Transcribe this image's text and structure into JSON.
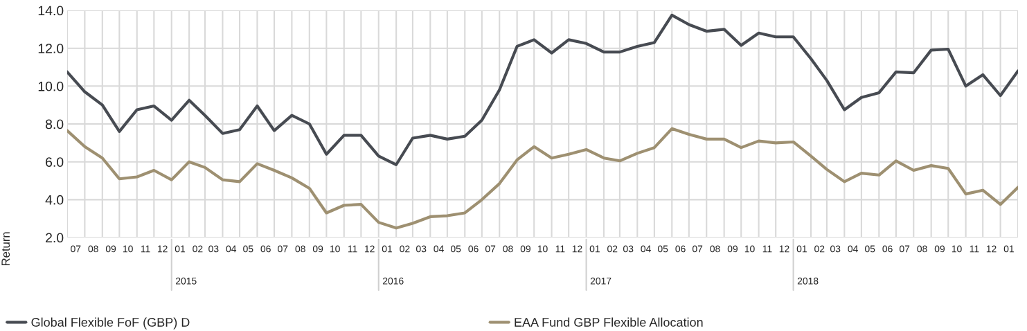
{
  "chart_data": {
    "type": "line",
    "ylabel": "Return",
    "x": [
      "2014-07-01",
      "2014-08-01",
      "2014-09-01",
      "2014-10-01",
      "2014-11-01",
      "2014-12-01",
      "2015-01-01",
      "2015-02-01",
      "2015-03-01",
      "2015-04-01",
      "2015-05-01",
      "2015-06-01",
      "2015-07-01",
      "2015-08-01",
      "2015-09-01",
      "2015-10-01",
      "2015-11-01",
      "2015-12-01",
      "2016-01-01",
      "2016-02-01",
      "2016-03-01",
      "2016-04-01",
      "2016-05-01",
      "2016-06-01",
      "2016-07-01",
      "2016-08-01",
      "2016-09-01",
      "2016-10-01",
      "2016-11-01",
      "2016-12-01",
      "2017-01-01",
      "2017-02-01",
      "2017-03-01",
      "2017-04-01",
      "2017-05-01",
      "2017-06-01",
      "2017-07-01",
      "2017-08-01",
      "2017-09-01",
      "2017-10-01",
      "2017-11-01",
      "2017-12-01",
      "2018-01-01",
      "2018-02-01",
      "2018-03-01",
      "2018-04-01",
      "2018-05-01",
      "2018-06-01",
      "2018-07-01",
      "2018-08-01",
      "2018-09-01",
      "2018-10-01",
      "2018-11-01",
      "2018-12-01",
      "2019-01-01",
      "2019-02-01"
    ],
    "series": [
      {
        "name": "Global Flexible FoF (GBP) D",
        "color": "#474b52",
        "values": [
          10.75,
          9.7,
          9.0,
          7.6,
          8.75,
          8.95,
          8.2,
          9.25,
          8.45,
          7.5,
          7.7,
          8.95,
          7.65,
          8.45,
          8.0,
          6.4,
          7.4,
          7.4,
          6.3,
          5.85,
          7.25,
          7.4,
          7.2,
          7.35,
          8.2,
          9.8,
          12.1,
          12.45,
          11.75,
          12.45,
          12.25,
          11.8,
          11.8,
          12.1,
          12.3,
          13.75,
          13.25,
          12.9,
          13.0,
          12.15,
          12.8,
          12.6,
          12.6,
          11.45,
          10.3,
          8.75,
          9.4,
          9.65,
          10.75,
          10.7,
          11.9,
          11.95,
          10.0,
          10.6,
          9.5,
          10.8
        ]
      },
      {
        "name": "EAA Fund GBP Flexible Allocation",
        "color": "#9e9071",
        "values": [
          7.65,
          6.8,
          6.2,
          5.1,
          5.2,
          5.55,
          5.05,
          6.0,
          5.7,
          5.05,
          4.95,
          5.9,
          5.55,
          5.15,
          4.6,
          3.3,
          3.7,
          3.75,
          2.8,
          2.5,
          2.75,
          3.1,
          3.15,
          3.3,
          4.0,
          4.85,
          6.1,
          6.8,
          6.2,
          6.4,
          6.65,
          6.2,
          6.05,
          6.45,
          6.75,
          7.75,
          7.45,
          7.2,
          7.2,
          6.75,
          7.1,
          7.0,
          7.05,
          6.3,
          5.6,
          4.95,
          5.4,
          5.3,
          6.05,
          5.55,
          5.8,
          5.65,
          4.3,
          4.5,
          3.75,
          4.65
        ]
      }
    ],
    "xlim": [
      "2014-07-01",
      "2019-02-01"
    ],
    "xticks": [
      {
        "value": "2014-07-16",
        "label": "07"
      },
      {
        "value": "2014-08-16",
        "label": "08"
      },
      {
        "value": "2014-09-16",
        "label": "09"
      },
      {
        "value": "2014-10-16",
        "label": "10"
      },
      {
        "value": "2014-11-16",
        "label": "11"
      },
      {
        "value": "2014-12-16",
        "label": "12"
      },
      {
        "value": "2015-01-16",
        "label": "01"
      },
      {
        "value": "2015-02-16",
        "label": "02"
      },
      {
        "value": "2015-03-16",
        "label": "03"
      },
      {
        "value": "2015-04-16",
        "label": "04"
      },
      {
        "value": "2015-05-16",
        "label": "05"
      },
      {
        "value": "2015-06-16",
        "label": "06"
      },
      {
        "value": "2015-07-16",
        "label": "07"
      },
      {
        "value": "2015-08-16",
        "label": "08"
      },
      {
        "value": "2015-09-16",
        "label": "09"
      },
      {
        "value": "2015-10-16",
        "label": "10"
      },
      {
        "value": "2015-11-16",
        "label": "11"
      },
      {
        "value": "2015-12-16",
        "label": "12"
      },
      {
        "value": "2016-01-16",
        "label": "01"
      },
      {
        "value": "2016-02-16",
        "label": "02"
      },
      {
        "value": "2016-03-16",
        "label": "03"
      },
      {
        "value": "2016-04-16",
        "label": "04"
      },
      {
        "value": "2016-05-16",
        "label": "05"
      },
      {
        "value": "2016-06-16",
        "label": "06"
      },
      {
        "value": "2016-07-16",
        "label": "07"
      },
      {
        "value": "2016-08-16",
        "label": "08"
      },
      {
        "value": "2016-09-16",
        "label": "09"
      },
      {
        "value": "2016-10-16",
        "label": "10"
      },
      {
        "value": "2016-11-16",
        "label": "11"
      },
      {
        "value": "2016-12-16",
        "label": "12"
      },
      {
        "value": "2017-01-16",
        "label": "01"
      },
      {
        "value": "2017-02-16",
        "label": "02"
      },
      {
        "value": "2017-03-16",
        "label": "03"
      },
      {
        "value": "2017-04-16",
        "label": "04"
      },
      {
        "value": "2017-05-16",
        "label": "05"
      },
      {
        "value": "2017-06-16",
        "label": "06"
      },
      {
        "value": "2017-07-16",
        "label": "07"
      },
      {
        "value": "2017-08-16",
        "label": "08"
      },
      {
        "value": "2017-09-16",
        "label": "09"
      },
      {
        "value": "2017-10-16",
        "label": "10"
      },
      {
        "value": "2017-11-16",
        "label": "11"
      },
      {
        "value": "2017-12-16",
        "label": "12"
      },
      {
        "value": "2018-01-16",
        "label": "01"
      },
      {
        "value": "2018-02-16",
        "label": "02"
      },
      {
        "value": "2018-03-16",
        "label": "03"
      },
      {
        "value": "2018-04-16",
        "label": "04"
      },
      {
        "value": "2018-05-16",
        "label": "05"
      },
      {
        "value": "2018-06-16",
        "label": "06"
      },
      {
        "value": "2018-07-16",
        "label": "07"
      },
      {
        "value": "2018-08-16",
        "label": "08"
      },
      {
        "value": "2018-09-16",
        "label": "09"
      },
      {
        "value": "2018-10-16",
        "label": "10"
      },
      {
        "value": "2018-11-16",
        "label": "11"
      },
      {
        "value": "2018-12-16",
        "label": "12"
      },
      {
        "value": "2019-01-16",
        "label": "01"
      }
    ],
    "ylim": [
      2,
      14
    ],
    "yticks": [
      {
        "value": 2,
        "label": "2.0"
      },
      {
        "value": 4,
        "label": "4.0"
      },
      {
        "value": 6,
        "label": "6.0"
      },
      {
        "value": 8,
        "label": "8.0"
      },
      {
        "value": 10,
        "label": "10.0"
      },
      {
        "value": 12,
        "label": "12.0"
      },
      {
        "value": 14,
        "label": "14.0"
      }
    ],
    "annotations": [
      "2015",
      "2016",
      "2017",
      "2018"
    ],
    "grid": true,
    "legend": "bottom",
    "line_style": "solid",
    "marker": "none"
  }
}
